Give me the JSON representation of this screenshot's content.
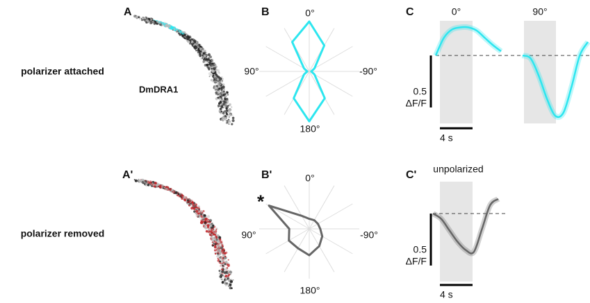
{
  "row_labels": [
    "polarizer attached",
    "polarizer removed"
  ],
  "panels": [
    {
      "label": "A",
      "annotation": "DmDRA1"
    },
    {
      "label": "B",
      "type": "polar",
      "color": "#2de6ef",
      "angle_labels": [
        "0°",
        "90°",
        "-90°",
        "180°"
      ],
      "angles": [
        0,
        30,
        60,
        90,
        120,
        150,
        180,
        210,
        240,
        270,
        300,
        330
      ],
      "values": [
        1.0,
        0.68,
        0.12,
        0.04,
        0.12,
        0.62,
        1.0,
        0.62,
        0.12,
        0.04,
        0.12,
        0.6
      ],
      "rlim": [
        0,
        1
      ]
    },
    {
      "label": "C",
      "type": "trace",
      "series": [
        {
          "name": "0°",
          "color": "#2de6ef",
          "x": [
            0,
            1,
            2,
            3,
            4,
            5,
            6,
            7,
            8
          ],
          "values": [
            0,
            0.17,
            0.25,
            0.27,
            0.27,
            0.24,
            0.17,
            0.1,
            0.04
          ]
        },
        {
          "name": "90°",
          "color": "#2de6ef",
          "x": [
            0,
            1,
            2,
            3,
            4,
            5,
            6,
            7,
            8
          ],
          "values": [
            0,
            -0.03,
            -0.2,
            -0.42,
            -0.58,
            -0.55,
            -0.3,
            0,
            0.13
          ]
        }
      ],
      "y_scale": 0.5,
      "y_unit": "ΔF/F",
      "time_scale": {
        "value": 4,
        "label": "4 s"
      }
    },
    {
      "label": "A'"
    },
    {
      "label": "B'",
      "type": "polar",
      "color": "#666666",
      "marker": "*",
      "angle_labels": [
        "0°",
        "90°",
        "-90°",
        "180°"
      ],
      "angles": [
        0,
        30,
        60,
        90,
        120,
        150,
        180,
        210,
        240,
        270,
        300,
        330
      ],
      "values": [
        0.2,
        0.3,
        0.93,
        0.4,
        0.47,
        0.45,
        0.53,
        0.4,
        0.3,
        0.22,
        0.2,
        0.2
      ],
      "rlim": [
        0,
        1
      ]
    },
    {
      "label": "C'",
      "type": "trace",
      "title": "unpolarized",
      "series": [
        {
          "name": null,
          "color": "#666666",
          "x": [
            0,
            1,
            2,
            3,
            4,
            5,
            6,
            7,
            8
          ],
          "values": [
            0,
            -0.05,
            -0.16,
            -0.27,
            -0.35,
            -0.37,
            -0.15,
            0.08,
            0.14
          ]
        }
      ],
      "y_scale": 0.5,
      "y_unit": "ΔF/F",
      "time_scale": {
        "value": 4,
        "label": "4 s"
      }
    }
  ]
}
